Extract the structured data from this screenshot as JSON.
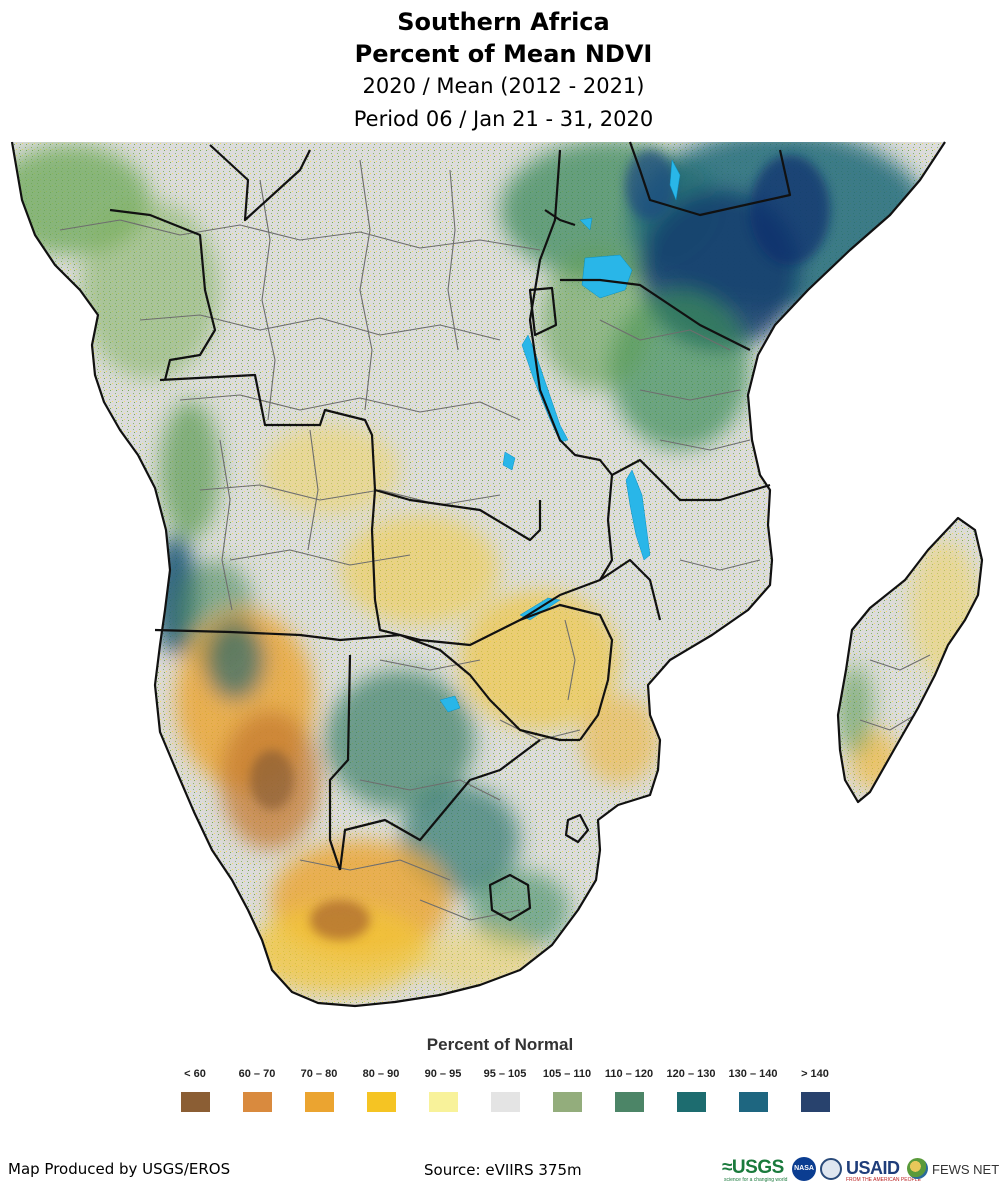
{
  "title": {
    "line1": "Southern Africa",
    "line2": "Percent of Mean NDVI",
    "line3": "2020 / Mean (2012 - 2021)",
    "line4": "Period 06 / Jan 21 - 31, 2020"
  },
  "map": {
    "region": "Southern Africa",
    "land_color": "#dcdcdc",
    "water_color": "#29b6e8",
    "border_color": "#111111",
    "subborder_color": "#6e6e6e"
  },
  "legend": {
    "title": "Percent of Normal",
    "classes": [
      {
        "label": "< 60",
        "color": "#8b5e34"
      },
      {
        "label": "60 – 70",
        "color": "#d98a3e"
      },
      {
        "label": "70 – 80",
        "color": "#eba430"
      },
      {
        "label": "80 – 90",
        "color": "#f5c423"
      },
      {
        "label": "90 – 95",
        "color": "#f8f29a"
      },
      {
        "label": "95 – 105",
        "color": "#e4e4e4"
      },
      {
        "label": "105 – 110",
        "color": "#93ad7c"
      },
      {
        "label": "110 – 120",
        "color": "#4c8567"
      },
      {
        "label": "120 – 130",
        "color": "#1d6c6f"
      },
      {
        "label": "130 – 140",
        "color": "#1e6680"
      },
      {
        "label": "> 140",
        "color": "#28426d"
      }
    ]
  },
  "footer": {
    "producer": "Map Produced by USGS/EROS",
    "source": "Source: eVIIRS 375m",
    "logos": {
      "usgs": "≈USGS",
      "usgs_tagline": "science for a changing world",
      "nasa": "NASA",
      "usaid": "USAID",
      "usaid_tagline": "FROM THE AMERICAN PEOPLE",
      "fews": "FEWS NET"
    }
  }
}
